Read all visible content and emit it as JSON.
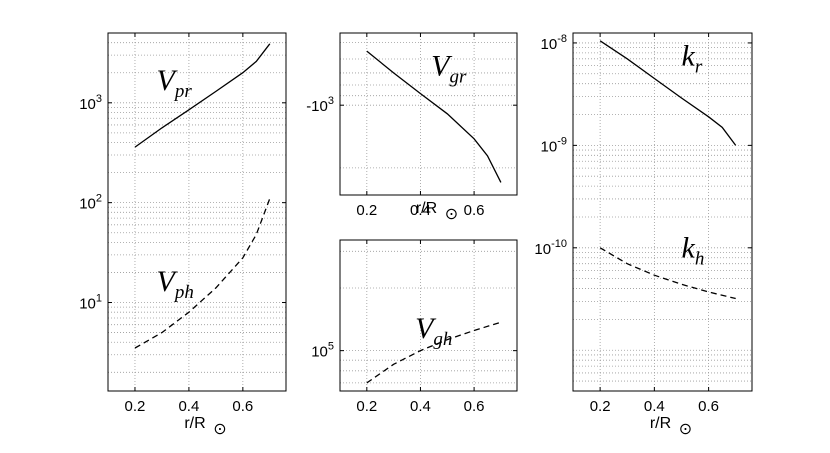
{
  "chart_data": [
    {
      "type": "line",
      "scale": "log",
      "xlabel": "r/R",
      "xlabel_symbol": "⊙",
      "xlim": [
        0.1,
        0.76
      ],
      "ylim": [
        1.3,
        5000
      ],
      "xticks": [
        0.2,
        0.4,
        0.6
      ],
      "xtick_labels": [
        "0.2",
        "0.4",
        "0.6"
      ],
      "yticks": [
        10,
        100,
        1000
      ],
      "ytick_labels": [
        {
          "base": "10",
          "exp": "1"
        },
        {
          "base": "10",
          "exp": "2"
        },
        {
          "base": "10",
          "exp": "3"
        }
      ],
      "grid": true,
      "series": [
        {
          "name": "V",
          "sub": "pr",
          "style": "solid",
          "x": [
            0.2,
            0.3,
            0.4,
            0.5,
            0.6,
            0.65,
            0.7
          ],
          "y": [
            360,
            560,
            850,
            1300,
            2000,
            2600,
            3900
          ]
        },
        {
          "name": "V",
          "sub": "ph",
          "style": "dashed",
          "x": [
            0.2,
            0.3,
            0.4,
            0.5,
            0.6,
            0.65,
            0.7
          ],
          "y": [
            3.5,
            5,
            8,
            14,
            28,
            48,
            110
          ]
        }
      ],
      "labels": [
        {
          "main": "V",
          "sub": "pr",
          "x": 0.28,
          "y": 1350
        },
        {
          "main": "V",
          "sub": "ph",
          "x": 0.28,
          "y": 13
        }
      ]
    },
    {
      "type": "line",
      "scale": "log",
      "xlabel": "r/R",
      "xlabel_symbol": "⊙",
      "xlim": [
        0.1,
        0.76
      ],
      "ylim": [
        2700,
        450
      ],
      "xticks": [
        0.2,
        0.4,
        0.6
      ],
      "xtick_labels": [
        "0.2",
        "0.4",
        "0.6"
      ],
      "yticks": [
        1000
      ],
      "ytick_labels": [
        {
          "base": "-10",
          "exp": "3"
        }
      ],
      "grid": true,
      "series": [
        {
          "name": "V",
          "sub": "gr",
          "style": "solid",
          "x": [
            0.2,
            0.3,
            0.4,
            0.5,
            0.6,
            0.65,
            0.7
          ],
          "y": [
            550,
            700,
            880,
            1100,
            1450,
            1750,
            2350
          ]
        }
      ],
      "labels": [
        {
          "main": "V",
          "sub": "gr",
          "x": 0.44,
          "y": 720
        }
      ]
    },
    {
      "type": "line",
      "scale": "log",
      "xlim": [
        0.1,
        0.76
      ],
      "ylim": [
        64000,
        340000
      ],
      "xticks": [
        0.2,
        0.4,
        0.6
      ],
      "xtick_labels": [
        "0.2",
        "0.4",
        "0.6"
      ],
      "yticks": [
        100000
      ],
      "ytick_labels": [
        {
          "base": "10",
          "exp": "5"
        }
      ],
      "grid": true,
      "series": [
        {
          "name": "V",
          "sub": "gh",
          "style": "dashed",
          "x": [
            0.2,
            0.3,
            0.4,
            0.5,
            0.6,
            0.7
          ],
          "y": [
            70000,
            86000,
            100000,
            113000,
            125000,
            137000
          ]
        }
      ],
      "labels": [
        {
          "main": "V",
          "sub": "gh",
          "x": 0.38,
          "y": 115000
        }
      ]
    },
    {
      "type": "line",
      "scale": "log",
      "xlabel": "r/R",
      "xlabel_symbol": "⊙",
      "xlim": [
        0.1,
        0.76
      ],
      "ylim": [
        4e-12,
        1.25e-08
      ],
      "xticks": [
        0.2,
        0.4,
        0.6
      ],
      "xtick_labels": [
        "0.2",
        "0.4",
        "0.6"
      ],
      "yticks": [
        1e-10,
        1e-09,
        1e-08
      ],
      "ytick_labels": [
        {
          "base": "10",
          "exp": "-10"
        },
        {
          "base": "10",
          "exp": "-9"
        },
        {
          "base": "10",
          "exp": "-8"
        }
      ],
      "grid": true,
      "series": [
        {
          "name": "k",
          "sub": "r",
          "style": "solid",
          "x": [
            0.2,
            0.3,
            0.4,
            0.5,
            0.6,
            0.65,
            0.7
          ],
          "y": [
            1.05e-08,
            7e-09,
            4.5e-09,
            2.9e-09,
            1.9e-09,
            1.5e-09,
            1e-09
          ]
        },
        {
          "name": "k",
          "sub": "h",
          "style": "dashed",
          "x": [
            0.2,
            0.3,
            0.4,
            0.5,
            0.6,
            0.7
          ],
          "y": [
            1e-10,
            7e-11,
            5.4e-11,
            4.4e-11,
            3.7e-11,
            3.2e-11
          ]
        }
      ],
      "labels": [
        {
          "main": "k",
          "sub": "r",
          "x": 0.5,
          "y": 6e-09
        },
        {
          "main": "k",
          "sub": "h",
          "x": 0.5,
          "y": 8e-11
        }
      ]
    }
  ]
}
